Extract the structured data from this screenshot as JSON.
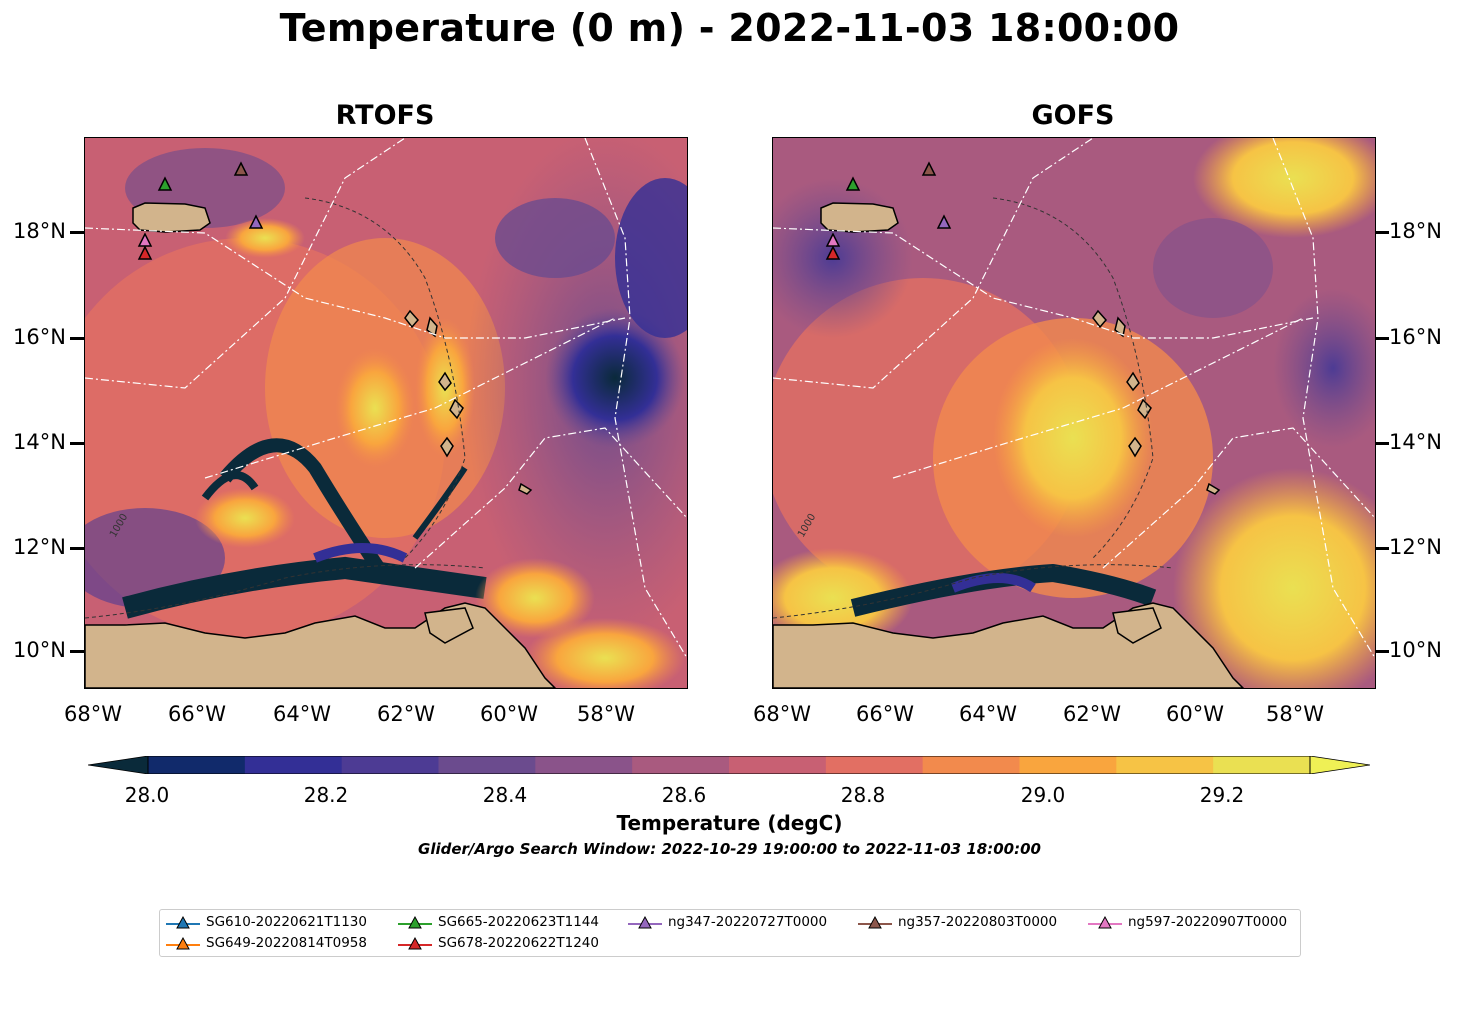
{
  "title": "Temperature (0 m) - 2022-11-03 18:00:00",
  "panels": [
    {
      "title": "RTOFS"
    },
    {
      "title": "GOFS"
    }
  ],
  "lon_ticks": [
    "68°W",
    "66°W",
    "64°W",
    "62°W",
    "60°W",
    "58°W"
  ],
  "lat_ticks": [
    "18°N",
    "16°N",
    "14°N",
    "12°N",
    "10°N"
  ],
  "contour_label": "1000",
  "colorbar": {
    "label": "Temperature (degC)",
    "ticks": [
      "28.0",
      "28.2",
      "28.4",
      "28.6",
      "28.8",
      "29.0",
      "29.2"
    ],
    "colors": [
      "#0a2a3a",
      "#112a6b",
      "#332f96",
      "#4d3b94",
      "#6b4b8e",
      "#8a538a",
      "#a95a7f",
      "#c86073",
      "#e26f63",
      "#f28a4d",
      "#f9a53e",
      "#f6c345",
      "#eae052",
      "#eff055"
    ]
  },
  "search_window": "Glider/Argo Search Window: 2022-10-29 19:00:00 to 2022-11-03 18:00:00",
  "legend": [
    {
      "label": "SG610-20220621T1130",
      "color": "#1f77b4"
    },
    {
      "label": "SG649-20220814T0958",
      "color": "#ff7f0e"
    },
    {
      "label": "SG665-20220623T1144",
      "color": "#2ca02c"
    },
    {
      "label": "SG678-20220622T1240",
      "color": "#d62728"
    },
    {
      "label": "ng347-20220727T0000",
      "color": "#9467bd"
    },
    {
      "label": "ng357-20220803T0000",
      "color": "#8c564b"
    },
    {
      "label": "ng597-20220907T0000",
      "color": "#e377c2"
    }
  ],
  "map": {
    "extent_lon": [
      -68.2,
      -56.5
    ],
    "extent_lat": [
      9.2,
      19.8
    ],
    "land_color": "#d2b48c",
    "ocean_colors": {
      "cold": "#0a2a3a",
      "mid": "#8a538a",
      "warm": "#f28a4d",
      "hot": "#eae052"
    }
  }
}
